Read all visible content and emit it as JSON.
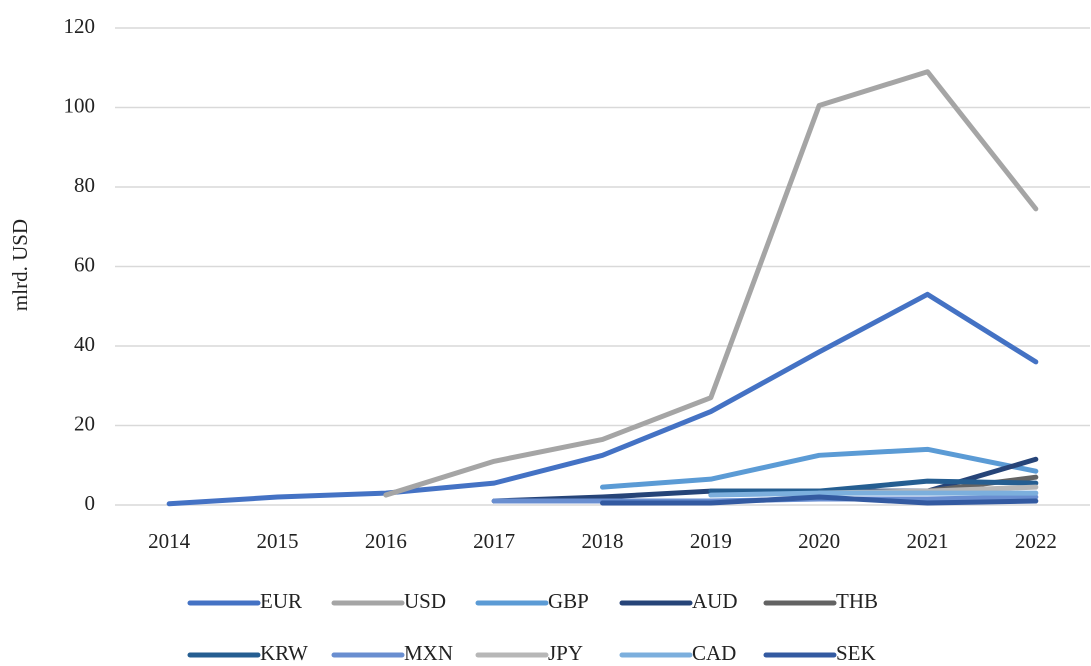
{
  "chart_data": {
    "type": "line",
    "y_label": "mlrd. USD",
    "categories": [
      "2014",
      "2015",
      "2016",
      "2017",
      "2018",
      "2019",
      "2020",
      "2021",
      "2022"
    ],
    "ylim": [
      0,
      120
    ],
    "yticks": [
      0,
      20,
      40,
      60,
      80,
      100,
      120
    ],
    "grid": true,
    "series": [
      {
        "name": "EUR",
        "color": "#4472c4",
        "values": [
          0.3,
          2,
          3,
          5.5,
          12.5,
          23.5,
          38.5,
          53,
          36
        ]
      },
      {
        "name": "USD",
        "color": "#a5a5a5",
        "values": [
          null,
          null,
          2.5,
          11,
          16.5,
          27,
          100.5,
          109,
          74.5
        ]
      },
      {
        "name": "GBP",
        "color": "#5b9bd5",
        "values": [
          null,
          null,
          null,
          null,
          4.5,
          6.5,
          12.5,
          14,
          8.5
        ]
      },
      {
        "name": "AUD",
        "color": "#264478",
        "values": [
          null,
          null,
          null,
          1,
          2,
          3.5,
          3.5,
          3.5,
          11.5
        ]
      },
      {
        "name": "THB",
        "color": "#636363",
        "values": [
          null,
          null,
          null,
          null,
          null,
          null,
          null,
          3.5,
          7
        ]
      },
      {
        "name": "KRW",
        "color": "#255e91",
        "values": [
          null,
          null,
          null,
          null,
          null,
          3.5,
          3.5,
          6,
          5.5
        ]
      },
      {
        "name": "MXN",
        "color": "#698ed0",
        "values": [
          null,
          null,
          null,
          1,
          1,
          1,
          1.5,
          1.5,
          2
        ]
      },
      {
        "name": "JPY",
        "color": "#b7b7b7",
        "values": [
          null,
          null,
          null,
          null,
          null,
          null,
          3,
          3.5,
          4.5
        ]
      },
      {
        "name": "CAD",
        "color": "#7cafdd",
        "values": [
          null,
          null,
          null,
          null,
          null,
          2.5,
          3,
          3,
          3
        ]
      },
      {
        "name": "SEK",
        "color": "#335aa1",
        "values": [
          null,
          null,
          null,
          null,
          0.5,
          0.5,
          2,
          0.5,
          1
        ]
      }
    ]
  }
}
